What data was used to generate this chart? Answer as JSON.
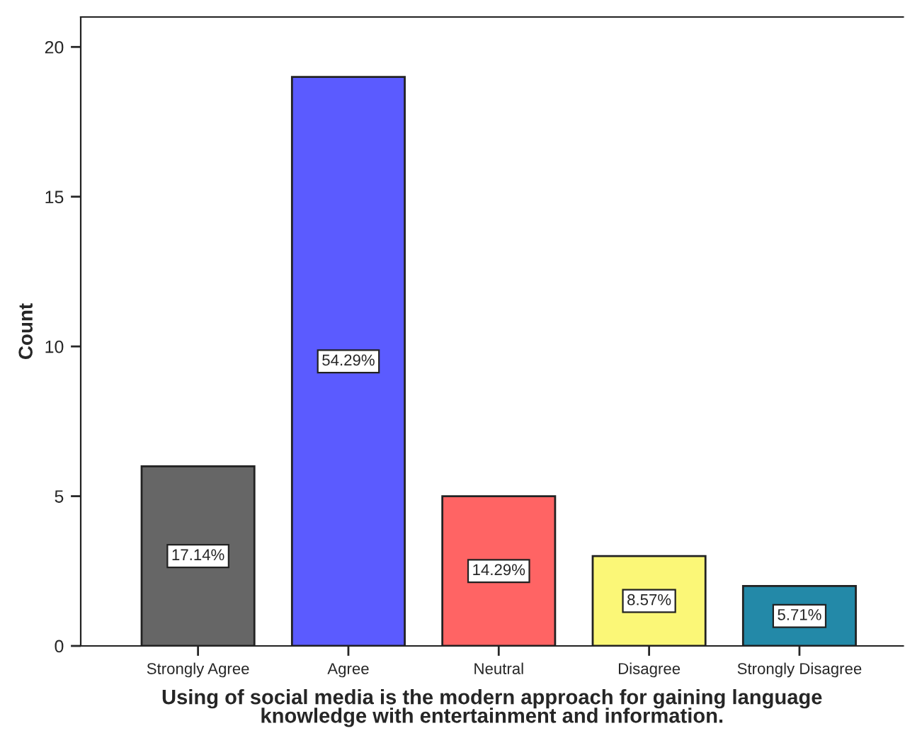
{
  "chart_data": {
    "type": "bar",
    "xlabel": "Using of social media is the modern approach for gaining language\nknowledge with entertainment and information.",
    "ylabel": "Count",
    "categories": [
      "Strongly Agree",
      "Agree",
      "Neutral",
      "Disagree",
      "Strongly Disagree"
    ],
    "values": [
      6,
      19,
      5,
      3,
      2
    ],
    "colors": [
      "#666666",
      "#5b5bff",
      "#ff6464",
      "#fbf777",
      "#2389a8"
    ],
    "annotations": [
      {
        "text": "17.14%",
        "x": "Strongly Agree",
        "y": 3
      },
      {
        "text": "54.29%",
        "x": "Agree",
        "y": 9.5
      },
      {
        "text": "14.29%",
        "x": "Neutral",
        "y": 2.5
      },
      {
        "text": "8.57%",
        "x": "Disagree",
        "y": 1.5
      },
      {
        "text": "5.71%",
        "x": "Strongly Disagree",
        "y": 1
      }
    ],
    "ylim": [
      0,
      21
    ],
    "yticks": [
      0,
      5,
      10,
      15,
      20
    ],
    "grid": false
  }
}
